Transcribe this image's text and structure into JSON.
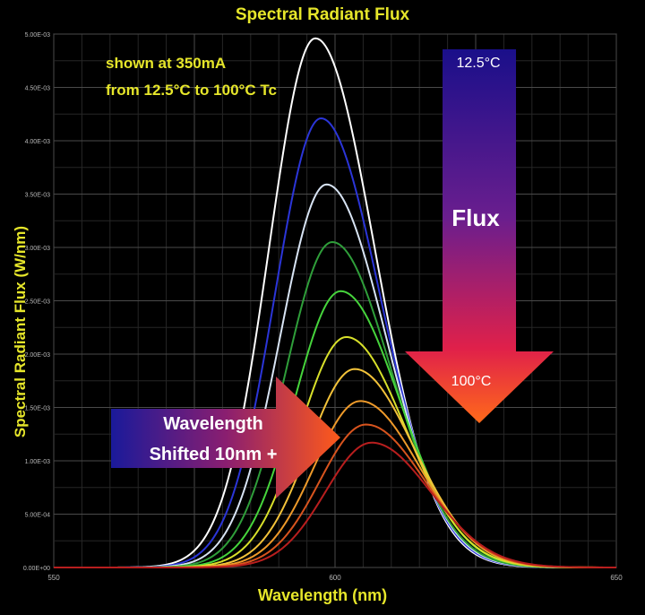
{
  "chart_data": {
    "type": "line",
    "title": "Spectral Radiant Flux",
    "xlabel": "Wavelength  (nm)",
    "ylabel": "Spectral Radiant Flux  (W/nm)",
    "xlim": [
      550,
      650
    ],
    "ylim": [
      0,
      0.005
    ],
    "x_ticks": [
      {
        "value": 550,
        "label": "550"
      },
      {
        "value": 600,
        "label": "600"
      },
      {
        "value": 650,
        "label": "650"
      }
    ],
    "y_ticks": [
      {
        "value": 0,
        "label": "0.00E+00"
      },
      {
        "value": 0.0005,
        "label": "5.00E-04"
      },
      {
        "value": 0.001,
        "label": "1.00E-03"
      },
      {
        "value": 0.0015,
        "label": "1.50E-03"
      },
      {
        "value": 0.002,
        "label": "2.00E-03"
      },
      {
        "value": 0.0025,
        "label": "2.50E-03"
      },
      {
        "value": 0.003,
        "label": "3.00E-03"
      },
      {
        "value": 0.0035,
        "label": "3.50E-03"
      },
      {
        "value": 0.004,
        "label": "4.00E-03"
      },
      {
        "value": 0.0045,
        "label": "4.50E-03"
      },
      {
        "value": 0.005,
        "label": "5.00E-03"
      }
    ],
    "grid": true,
    "series": [
      {
        "color": "#ffffff",
        "peak_x": 596.5,
        "peak_y": 0.00496
      },
      {
        "color": "#2b35d8",
        "peak_x": 597.5,
        "peak_y": 0.00421
      },
      {
        "color": "#d8e4f4",
        "peak_x": 598.5,
        "peak_y": 0.00359
      },
      {
        "color": "#2f9e3a",
        "peak_x": 599.5,
        "peak_y": 0.00305
      },
      {
        "color": "#46d43c",
        "peak_x": 601,
        "peak_y": 0.00259
      },
      {
        "color": "#d8e02a",
        "peak_x": 602,
        "peak_y": 0.00216
      },
      {
        "color": "#f2c23a",
        "peak_x": 603.5,
        "peak_y": 0.00186
      },
      {
        "color": "#ee9a2a",
        "peak_x": 604.5,
        "peak_y": 0.00156
      },
      {
        "color": "#d8541e",
        "peak_x": 605.5,
        "peak_y": 0.00134
      },
      {
        "color": "#b81e1e",
        "peak_x": 606.5,
        "peak_y": 0.00117
      }
    ]
  },
  "annotations": {
    "note_line1": "shown at 350mA",
    "note_line2": "from 12.5°C to 100°C Tc",
    "temp_top": "12.5°C",
    "temp_bottom": "100°C",
    "flux_label": "Flux",
    "wavelength_line1": "Wavelength",
    "wavelength_line2": "Shifted 10nm +"
  }
}
